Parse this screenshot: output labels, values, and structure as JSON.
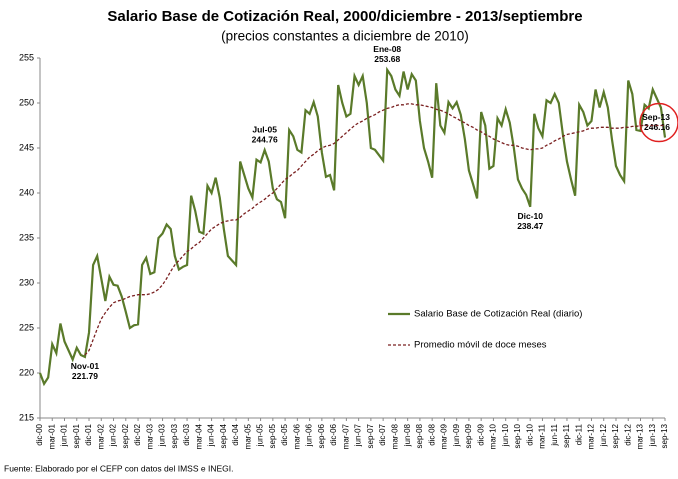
{
  "chart_data": {
    "type": "line",
    "title": "Salario Base de Cotización Real, 2000/diciembre - 2013/septiembre",
    "subtitle": "(precios constantes a diciembre de 2010)",
    "source": "Fuente: Elaborado por el CEFP con datos del IMSS e INEGI.",
    "categories": [
      "dic-00",
      null,
      null,
      "mar-01",
      null,
      null,
      "jun-01",
      null,
      null,
      "sep-01",
      null,
      null,
      "dic-01",
      null,
      null,
      "mar-02",
      null,
      null,
      "jun-02",
      null,
      null,
      "sep-02",
      null,
      null,
      "dic-02",
      null,
      null,
      "mar-03",
      null,
      null,
      "jun-03",
      null,
      null,
      "sep-03",
      null,
      null,
      "dic-03",
      null,
      null,
      "mar-04",
      null,
      null,
      "jun-04",
      null,
      null,
      "sep-04",
      null,
      null,
      "dic-04",
      null,
      null,
      "mar-05",
      null,
      null,
      "jun-05",
      null,
      null,
      "sep-05",
      null,
      null,
      "dic-05",
      null,
      null,
      "mar-06",
      null,
      null,
      "jun-06",
      null,
      null,
      "sep-06",
      null,
      null,
      "dic-06",
      null,
      null,
      "mar-07",
      null,
      null,
      "jun-07",
      null,
      null,
      "sep-07",
      null,
      null,
      "dic-07",
      null,
      null,
      "mar-08",
      null,
      null,
      "jun-08",
      null,
      null,
      "sep-08",
      null,
      null,
      "dic-08",
      null,
      null,
      "mar-09",
      null,
      null,
      "jun-09",
      null,
      null,
      "sep-09",
      null,
      null,
      "dic-09",
      null,
      null,
      "mar-10",
      null,
      null,
      "jun-10",
      null,
      null,
      "sep-10",
      null,
      null,
      "dic-10",
      null,
      null,
      "mar-11",
      null,
      null,
      "jun-11",
      null,
      null,
      "sep-11",
      null,
      null,
      "dic-11",
      null,
      null,
      "mar-12",
      null,
      null,
      "jun-12",
      null,
      null,
      "sep-12",
      null,
      null,
      "dic-12",
      null,
      null,
      "mar-13",
      null,
      null,
      "jun-13",
      null,
      null,
      "sep-13"
    ],
    "series": [
      {
        "name": "Salario Base de Cotización Real (diario)",
        "color": "#5a7a2a",
        "style": "solid",
        "values": [
          220,
          218.8,
          219.5,
          223.2,
          222.2,
          225.5,
          223.5,
          222.5,
          221.5,
          222.8,
          222,
          221.79,
          224.5,
          232,
          233,
          230.5,
          228,
          230.7,
          229.8,
          229.7,
          228.5,
          226.8,
          225,
          225.3,
          225.4,
          232,
          232.8,
          231,
          231.2,
          235,
          235.5,
          236.5,
          236,
          233,
          231.5,
          231.8,
          232,
          239.7,
          238,
          235.7,
          235.5,
          240.8,
          240,
          241.7,
          239.5,
          236,
          233,
          232.5,
          232,
          243.5,
          242,
          240.5,
          239.5,
          243.7,
          243.4,
          244.76,
          243.5,
          240.5,
          239.3,
          239,
          237.2,
          247,
          246.3,
          244.8,
          244.5,
          249.2,
          248.8,
          250.1,
          248.5,
          244.5,
          241.8,
          242,
          240.3,
          252,
          250,
          248.5,
          248.8,
          253,
          252,
          253,
          250,
          245,
          244.8,
          244.2,
          243.6,
          253.68,
          253,
          251.5,
          250.8,
          253.5,
          251.5,
          253.2,
          252.5,
          248,
          245,
          243.5,
          241.7,
          252.2,
          247.5,
          246.7,
          250.1,
          249.4,
          250.1,
          248.7,
          246,
          242.5,
          241,
          239.4,
          249,
          247.5,
          242.7,
          243,
          248.3,
          247.5,
          249.3,
          247.8,
          245,
          241.5,
          240.5,
          239.8,
          238.47,
          248.8,
          247.2,
          246.3,
          250.3,
          250,
          251,
          250,
          246.5,
          243.5,
          241.5,
          239.7,
          249.8,
          249,
          247.5,
          248,
          251.5,
          249.5,
          251.2,
          249.5,
          246,
          243,
          242,
          241.3,
          252.5,
          251,
          247,
          246.9,
          249.8,
          249.4,
          251.5,
          250.5,
          249.5,
          246.16
        ],
        "value_labels": [
          null,
          null,
          null,
          null,
          null,
          null,
          null,
          null,
          null,
          null,
          null,
          "221.79",
          null,
          null,
          null,
          null,
          null,
          null,
          null,
          null,
          null,
          null,
          null,
          null,
          null,
          null,
          null,
          null,
          null,
          null,
          null,
          null,
          null,
          null,
          null,
          null,
          null,
          null,
          null,
          null,
          null,
          null,
          null,
          null,
          null,
          null,
          null,
          null,
          null,
          null,
          null,
          null,
          null,
          null,
          null,
          "244.76",
          null,
          null,
          null,
          null,
          null,
          null,
          null,
          null,
          null,
          null,
          null,
          null,
          null,
          null,
          null,
          null,
          null,
          null,
          null,
          null,
          null,
          null,
          null,
          null,
          null,
          null,
          null,
          null,
          null,
          "253.68",
          null,
          null,
          null,
          null,
          null,
          null,
          null,
          null,
          null,
          null,
          null,
          null,
          null,
          null,
          null,
          null,
          null,
          null,
          null,
          null,
          null,
          null,
          null,
          null,
          null,
          null,
          null,
          null,
          null,
          null,
          null,
          null,
          null,
          null,
          "238.47",
          null,
          null,
          null,
          null,
          null,
          null,
          null,
          null,
          null,
          null,
          null,
          null,
          null,
          null,
          null,
          null,
          null,
          null,
          null,
          null,
          null,
          null,
          null,
          null,
          null,
          null,
          null,
          null,
          null,
          null,
          null,
          null,
          "246.16"
        ],
        "point_labels": [
          null,
          null,
          null,
          null,
          null,
          null,
          null,
          null,
          null,
          null,
          null,
          "Nov-01",
          null,
          null,
          null,
          null,
          null,
          null,
          null,
          null,
          null,
          null,
          null,
          null,
          null,
          null,
          null,
          null,
          null,
          null,
          null,
          null,
          null,
          null,
          null,
          null,
          null,
          null,
          null,
          null,
          null,
          null,
          null,
          null,
          null,
          null,
          null,
          null,
          null,
          null,
          null,
          null,
          null,
          null,
          null,
          "Jul-05",
          null,
          null,
          null,
          null,
          null,
          null,
          null,
          null,
          null,
          null,
          null,
          null,
          null,
          null,
          null,
          null,
          null,
          null,
          null,
          null,
          null,
          null,
          null,
          null,
          null,
          null,
          null,
          null,
          null,
          "Ene-08",
          null,
          null,
          null,
          null,
          null,
          null,
          null,
          null,
          null,
          null,
          null,
          null,
          null,
          null,
          null,
          null,
          null,
          null,
          null,
          null,
          null,
          null,
          null,
          null,
          null,
          null,
          null,
          null,
          null,
          null,
          null,
          null,
          null,
          null,
          "Dic-10",
          null,
          null,
          null,
          null,
          null,
          null,
          null,
          null,
          null,
          null,
          null,
          null,
          null,
          null,
          null,
          null,
          null,
          null,
          null,
          null,
          null,
          null,
          null,
          null,
          null,
          null,
          null,
          null,
          null,
          null,
          null,
          null,
          "Sep-13"
        ]
      },
      {
        "name": "Promedio móvil de doce meses",
        "color": "#7a2020",
        "style": "dashed",
        "values": [
          null,
          null,
          null,
          null,
          null,
          null,
          null,
          null,
          null,
          null,
          null,
          222.0,
          222.5,
          223.7,
          224.9,
          226,
          226.7,
          227.3,
          227.8,
          228,
          228.1,
          228.3,
          228.5,
          228.6,
          228.7,
          228.7,
          228.7,
          228.8,
          229,
          229.3,
          229.8,
          230.5,
          231.3,
          232,
          232.5,
          233,
          233.5,
          233.8,
          234.2,
          234.5,
          235,
          235.5,
          236,
          236.3,
          236.6,
          236.8,
          236.9,
          237,
          237,
          237.3,
          237.7,
          238,
          238.3,
          238.7,
          239,
          239.3,
          239.7,
          240,
          240.5,
          241,
          241.5,
          241.8,
          242.2,
          242.5,
          243,
          243.5,
          244,
          244.3,
          244.7,
          245,
          245.2,
          245.3,
          245.5,
          245.9,
          246.3,
          246.7,
          247.1,
          247.5,
          247.8,
          248,
          248.3,
          248.5,
          248.7,
          249,
          249.2,
          249.4,
          249.5,
          249.7,
          249.8,
          249.8,
          249.9,
          249.9,
          249.8,
          249.8,
          249.7,
          249.6,
          249.5,
          249.3,
          249.2,
          249,
          248.8,
          248.5,
          248.3,
          248,
          247.8,
          247.5,
          247.3,
          247,
          246.8,
          246.5,
          246.3,
          246,
          245.8,
          245.6,
          245.4,
          245.3,
          245.3,
          245.2,
          245,
          244.9,
          244.8,
          244.9,
          244.9,
          245,
          245.3,
          245.5,
          245.8,
          246,
          246.3,
          246.5,
          246.6,
          246.7,
          246.8,
          246.9,
          247.1,
          247.2,
          247.2,
          247.3,
          247.3,
          247.3,
          247.2,
          247.2,
          247.2,
          247.3,
          247.3,
          247.4,
          247.4,
          247.5,
          247.5,
          247.5,
          247.5,
          247.5,
          247.5,
          247.5
        ]
      }
    ],
    "ylim": [
      215,
      255
    ],
    "yticks": [
      215,
      220,
      225,
      230,
      235,
      240,
      245,
      250,
      255
    ],
    "grid": false,
    "legend": "right"
  }
}
